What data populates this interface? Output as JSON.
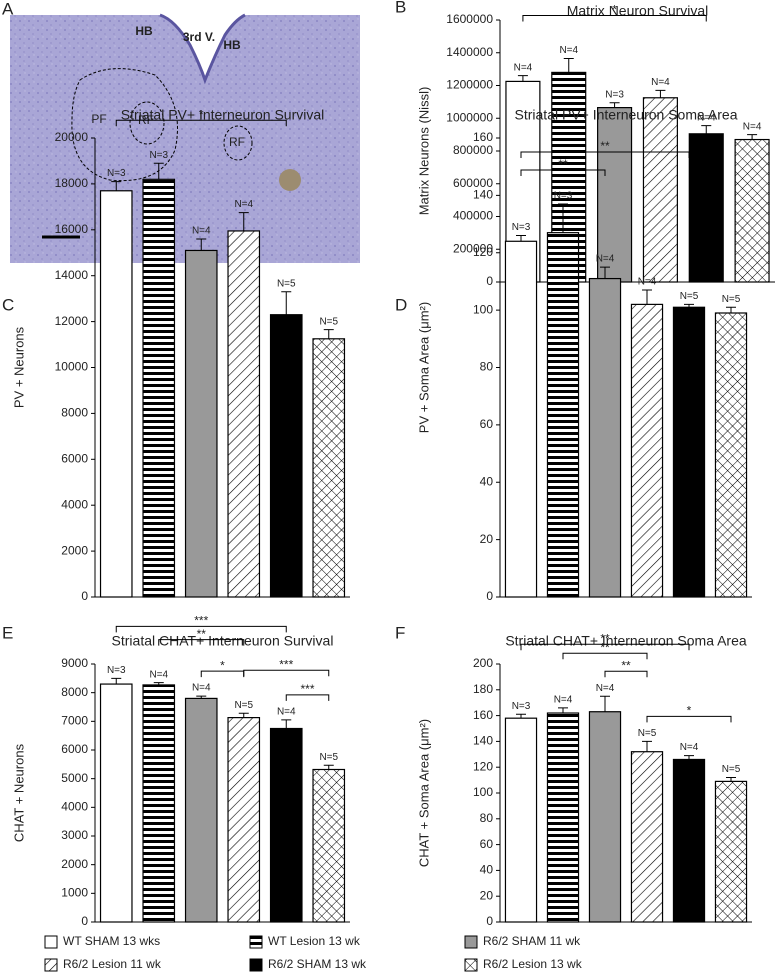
{
  "panel_a": {
    "label": "A",
    "labels": [
      "HB",
      "3rd V.",
      "HB",
      "PF",
      "RF",
      "RF"
    ]
  },
  "legend": {
    "entries": [
      {
        "name": "WT SHAM 13 wks",
        "pattern": "white"
      },
      {
        "name": "WT Lesion 13 wk",
        "pattern": "hstripe"
      },
      {
        "name": "R6/2 SHAM 11 wk",
        "pattern": "gray"
      },
      {
        "name": "R6/2 Lesion 11 wk",
        "pattern": "diag"
      },
      {
        "name": "R6/2 SHAM 13 wk",
        "pattern": "black"
      },
      {
        "name": "R6/2 Lesion 13 wk",
        "pattern": "cross"
      }
    ]
  },
  "chart_data": [
    {
      "type": "bar",
      "panel": "B",
      "title": "Matrix Neuron Survival",
      "ylabel": "Matrix Neurons (Nissl)",
      "values": [
        1225000,
        1280000,
        1065000,
        1125000,
        905000,
        870000
      ],
      "errors": [
        35000,
        85000,
        30000,
        45000,
        50000,
        30000
      ],
      "n_labels": [
        "N=4",
        "N=4",
        "N=3",
        "N=4",
        "N=4",
        "N=4"
      ],
      "annotations": [
        "*"
      ],
      "ylim": [
        0,
        1600000
      ],
      "yticks": [
        0,
        200000,
        400000,
        600000,
        800000,
        1000000,
        1200000,
        1400000,
        1600000
      ]
    },
    {
      "type": "bar",
      "panel": "C",
      "title": "Striatal PV+ Interneuron  Survival",
      "ylabel": "PV + Neurons",
      "values": [
        17700,
        18200,
        15100,
        15950,
        12300,
        11250
      ],
      "errors": [
        400,
        700,
        500,
        800,
        1000,
        400
      ],
      "n_labels": [
        "N=3",
        "N=3",
        "N=4",
        "N=4",
        "N=5",
        "N=5"
      ],
      "annotations": [
        "*"
      ],
      "ylim": [
        0,
        20000
      ],
      "yticks": [
        0,
        2000,
        4000,
        6000,
        8000,
        10000,
        12000,
        14000,
        16000,
        18000,
        20000
      ]
    },
    {
      "type": "bar",
      "panel": "D",
      "title": "Striatal PV+ Interneuron  Soma Area",
      "ylabel": "PV + Soma Area (μm²)",
      "values": [
        124,
        127,
        111,
        102,
        101,
        99
      ],
      "errors": [
        2,
        10,
        4,
        5,
        1,
        2
      ],
      "n_labels": [
        "N=3",
        "N=3",
        "N=4",
        "N=4",
        "N=5",
        "N=5"
      ],
      "annotations": [
        "**",
        "**"
      ],
      "ylim": [
        0,
        160
      ],
      "yticks": [
        0,
        20,
        40,
        60,
        80,
        100,
        120,
        140,
        160
      ]
    },
    {
      "type": "bar",
      "panel": "E",
      "title": "Striatal CHAT+ Interneuron  Survival",
      "ylabel": "CHAT + Neurons",
      "values": [
        8300,
        8270,
        7800,
        7130,
        6750,
        5320
      ],
      "errors": [
        200,
        80,
        80,
        150,
        300,
        150
      ],
      "n_labels": [
        "N=3",
        "N=4",
        "N=4",
        "N=5",
        "N=4",
        "N=5"
      ],
      "annotations": [
        "***",
        "**",
        "*",
        "***",
        "***"
      ],
      "ylim": [
        0,
        9000
      ],
      "yticks": [
        0,
        1000,
        2000,
        3000,
        4000,
        5000,
        6000,
        7000,
        8000,
        9000
      ]
    },
    {
      "type": "bar",
      "panel": "F",
      "title": "Striatal CHAT+ Interneuron  Soma Area",
      "ylabel": "CHAT + Soma Area (μm²)",
      "values": [
        158,
        162,
        163,
        132,
        126,
        109
      ],
      "errors": [
        3,
        4,
        12,
        8,
        3,
        3
      ],
      "n_labels": [
        "N=3",
        "N=4",
        "N=4",
        "N=5",
        "N=4",
        "N=5"
      ],
      "annotations": [
        "**",
        "**",
        "**",
        "*"
      ],
      "ylim": [
        0,
        200
      ],
      "yticks": [
        0,
        20,
        40,
        60,
        80,
        100,
        120,
        140,
        160,
        180,
        200
      ]
    }
  ]
}
